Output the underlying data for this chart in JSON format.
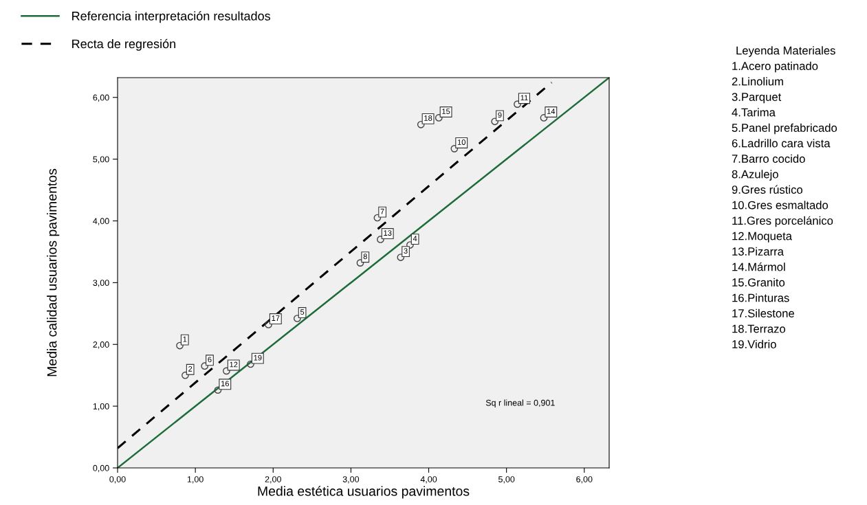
{
  "chart_data": {
    "type": "scatter",
    "xlabel": "Media estética usuarios pavimentos",
    "ylabel": "Media calidad usuarios pavimentos",
    "xlim": [
      0,
      6.32
    ],
    "ylim": [
      0,
      6.32
    ],
    "xticks": [
      {
        "value": 0,
        "label": "0,00"
      },
      {
        "value": 1,
        "label": "1,00"
      },
      {
        "value": 2,
        "label": "2,00"
      },
      {
        "value": 3,
        "label": "3,00"
      },
      {
        "value": 4,
        "label": "4,00"
      },
      {
        "value": 5,
        "label": "5,00"
      },
      {
        "value": 6,
        "label": "6,00"
      }
    ],
    "yticks": [
      {
        "value": 0,
        "label": "0,00"
      },
      {
        "value": 1,
        "label": "1,00"
      },
      {
        "value": 2,
        "label": "2,00"
      },
      {
        "value": 3,
        "label": "3,00"
      },
      {
        "value": 4,
        "label": "4,00"
      },
      {
        "value": 5,
        "label": "5,00"
      },
      {
        "value": 6,
        "label": "6,00"
      }
    ],
    "grid": false,
    "legend": "top left",
    "series": [
      {
        "color": "#444444",
        "marker": "circle",
        "x": [
          0.8,
          0.87,
          3.64,
          3.76,
          2.31,
          1.12,
          3.34,
          3.12,
          4.85,
          4.33,
          5.14,
          1.4,
          3.38,
          5.48,
          4.13,
          1.29,
          1.94,
          3.9,
          1.71
        ],
        "values": [
          1.98,
          1.5,
          3.41,
          3.61,
          2.42,
          1.65,
          4.05,
          3.32,
          5.61,
          5.17,
          5.89,
          1.57,
          3.7,
          5.67,
          5.67,
          1.26,
          2.32,
          5.56,
          1.68
        ]
      },
      {
        "type": "line",
        "name": "Referencia interpretación resultados",
        "color": "#1e6b3a",
        "line_style": "solid",
        "x": [
          0,
          6.32
        ],
        "values": [
          0,
          6.32
        ]
      },
      {
        "type": "line",
        "name": "Recta de regresión",
        "color": "#000000",
        "line_style": "dashed",
        "x": [
          0,
          5.58
        ],
        "values": [
          0.32,
          6.24
        ]
      }
    ],
    "annotations": [
      "Sq r lineal = 0,901",
      "Leyenda Materiales",
      "1.Acero patinado",
      "2.Linolium",
      "3.Parquet",
      "4.Tarima",
      "5.Panel prefabricado",
      "6.Ladrillo cara vista",
      "7.Barro cocido",
      "8.Azulejo",
      "9.Gres rústico",
      "10.Gres esmaltado",
      "11.Gres porcelánico",
      "12.Moqueta",
      "13.Pizarra",
      "14.Mármol",
      "15.Granito",
      "16.Pinturas",
      "17.Silestone",
      "18.Terrazo",
      "19.Vidrio",
      {
        "text": "1",
        "x": 0.8,
        "y": 1.98
      },
      {
        "text": "2",
        "x": 0.87,
        "y": 1.5
      },
      {
        "text": "3",
        "x": 3.64,
        "y": 3.41
      },
      {
        "text": "4",
        "x": 3.76,
        "y": 3.61
      },
      {
        "text": "5",
        "x": 2.31,
        "y": 2.42
      },
      {
        "text": "6",
        "x": 1.12,
        "y": 1.65
      },
      {
        "text": "7",
        "x": 3.34,
        "y": 4.05
      },
      {
        "text": "8",
        "x": 3.12,
        "y": 3.32
      },
      {
        "text": "9",
        "x": 4.85,
        "y": 5.61
      },
      {
        "text": "10",
        "x": 4.33,
        "y": 5.17
      },
      {
        "text": "11",
        "x": 5.14,
        "y": 5.89
      },
      {
        "text": "12",
        "x": 1.4,
        "y": 1.57
      },
      {
        "text": "13",
        "x": 3.38,
        "y": 3.7
      },
      {
        "text": "14",
        "x": 5.48,
        "y": 5.67
      },
      {
        "text": "15",
        "x": 4.13,
        "y": 5.67
      },
      {
        "text": "16",
        "x": 1.29,
        "y": 1.26
      },
      {
        "text": "17",
        "x": 1.94,
        "y": 2.32
      },
      {
        "text": "18",
        "x": 3.9,
        "y": 5.56
      },
      {
        "text": "19",
        "x": 1.71,
        "y": 1.68
      }
    ]
  }
}
